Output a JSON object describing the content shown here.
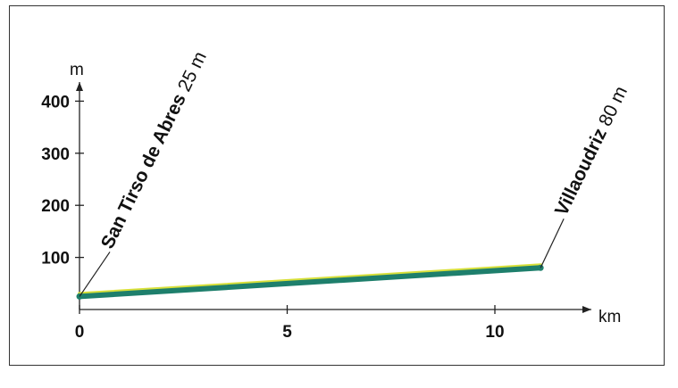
{
  "chart_data": {
    "type": "line",
    "xlabel": "km",
    "ylabel": "m",
    "xlim": [
      0,
      12.5
    ],
    "ylim": [
      0,
      430
    ],
    "x_ticks": [
      "0",
      "5",
      "10"
    ],
    "y_ticks": [
      "100",
      "200",
      "300",
      "400"
    ],
    "series": [
      {
        "x": [
          0,
          11.1
        ],
        "values": [
          25,
          80
        ]
      }
    ],
    "annotations": [
      {
        "x": 0,
        "y": 25,
        "name": "San Tirso de Abres",
        "altitude": "25 m"
      },
      {
        "x": 11.1,
        "y": 80,
        "name": "Villaoudriz",
        "altitude": "80 m"
      }
    ],
    "colors": {
      "profile": "#1e7f6c",
      "profile_highlight": "#d8e03a",
      "axis": "#222222"
    }
  }
}
